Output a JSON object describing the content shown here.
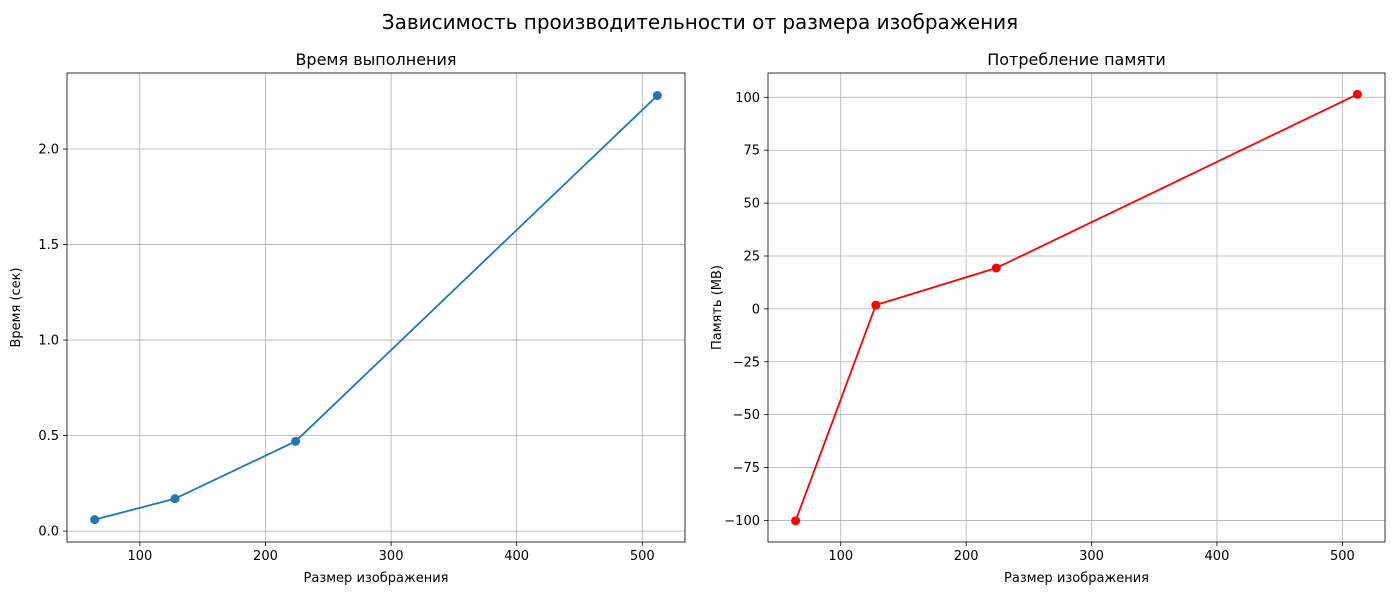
{
  "figure": {
    "suptitle": "Зависимость производительности от размера изображения"
  },
  "chart_data": [
    {
      "type": "line",
      "title": "Время выполнения",
      "xlabel": "Размер изображения",
      "ylabel": "Время (сек)",
      "xlim": [
        42,
        534
      ],
      "ylim": [
        -0.057,
        2.398
      ],
      "xticks": [
        100,
        200,
        300,
        400,
        500
      ],
      "xtick_labels": [
        "100",
        "200",
        "300",
        "400",
        "500"
      ],
      "yticks": [
        0.0,
        0.5,
        1.0,
        1.5,
        2.0
      ],
      "ytick_labels": [
        "0.0",
        "0.5",
        "1.0",
        "1.5",
        "2.0"
      ],
      "grid": true,
      "color": "#1f77b4",
      "x": [
        64,
        128,
        224,
        512
      ],
      "y": [
        0.06,
        0.17,
        0.47,
        2.28
      ]
    },
    {
      "type": "line",
      "title": "Потребление памяти",
      "xlabel": "Размер изображения",
      "ylabel": "Память (MB)",
      "xlim": [
        42,
        534
      ],
      "ylim": [
        -110.2,
        111.5
      ],
      "xticks": [
        100,
        200,
        300,
        400,
        500
      ],
      "xtick_labels": [
        "100",
        "200",
        "300",
        "400",
        "500"
      ],
      "yticks": [
        -100,
        -75,
        -50,
        -25,
        0,
        25,
        50,
        75,
        100
      ],
      "ytick_labels": [
        "−100",
        "−75",
        "−50",
        "−25",
        "0",
        "25",
        "50",
        "75",
        "100"
      ],
      "grid": true,
      "color": "#ff0000",
      "x": [
        64,
        128,
        224,
        512
      ],
      "y": [
        -100.2,
        1.8,
        19.3,
        101.4
      ]
    }
  ]
}
